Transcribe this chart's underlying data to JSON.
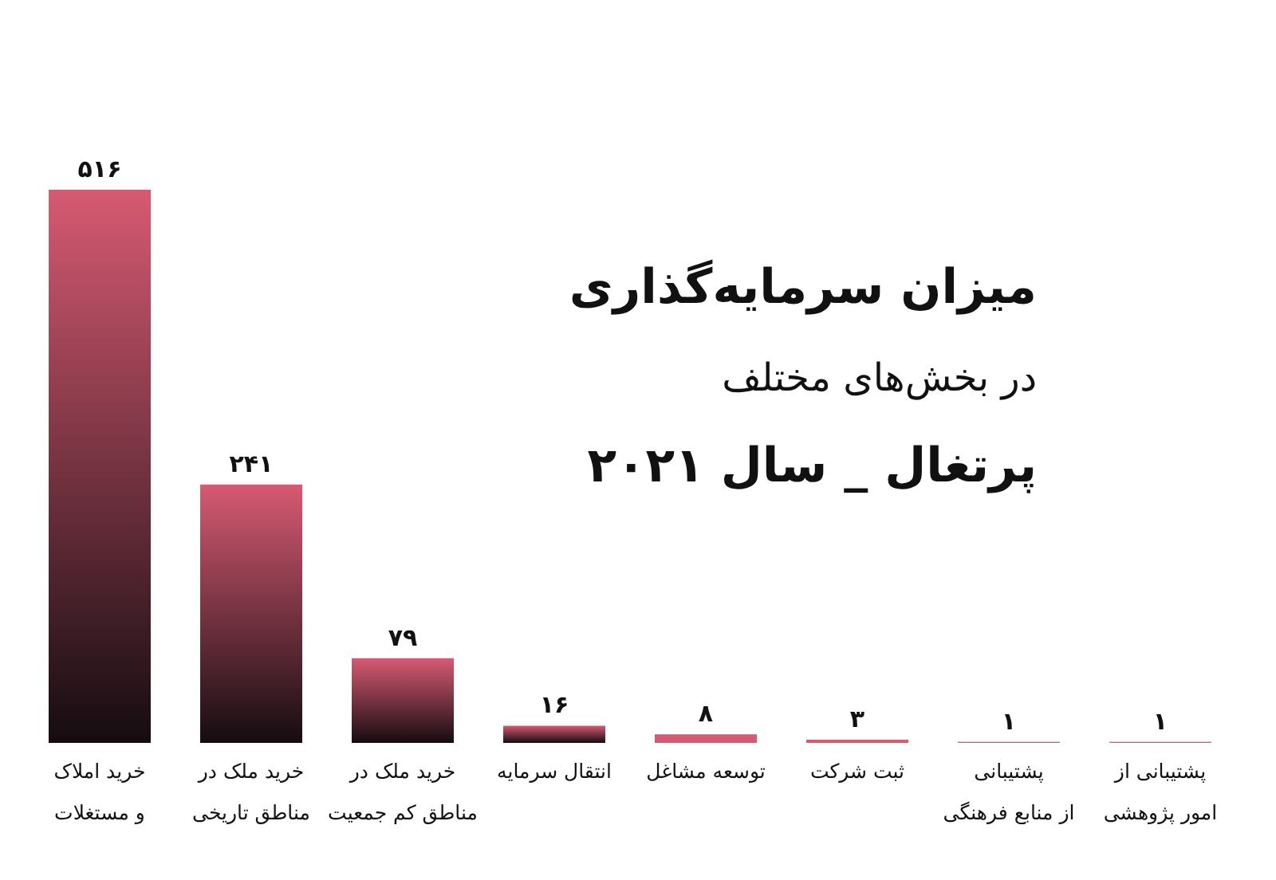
{
  "chart_data": {
    "type": "bar",
    "title": "میزان سرمایه‌گذاری",
    "subtitle": "در بخش‌های مختلف",
    "annotations": [
      "پرتغال _ سال ۲۰۲۱"
    ],
    "categories": [
      "خرید املاک\nو مستغلات",
      "خرید ملک در\nمناطق تاریخی",
      "خرید ملک در\nمناطق کم جمعیت",
      "انتقال سرمایه",
      "توسعه مشاغل",
      "ثبت شرکت",
      "پشتیبانی\nاز منابع فرهنگی",
      "پشتیبانی از\nامور پژوهشی"
    ],
    "values": [
      516,
      241,
      79,
      16,
      8,
      3,
      1,
      1
    ],
    "value_labels": [
      "۵۱۶",
      "۲۴۱",
      "۷۹",
      "۱۶",
      "۸",
      "۳",
      "۱",
      "۱"
    ],
    "color": "#d65a72"
  }
}
